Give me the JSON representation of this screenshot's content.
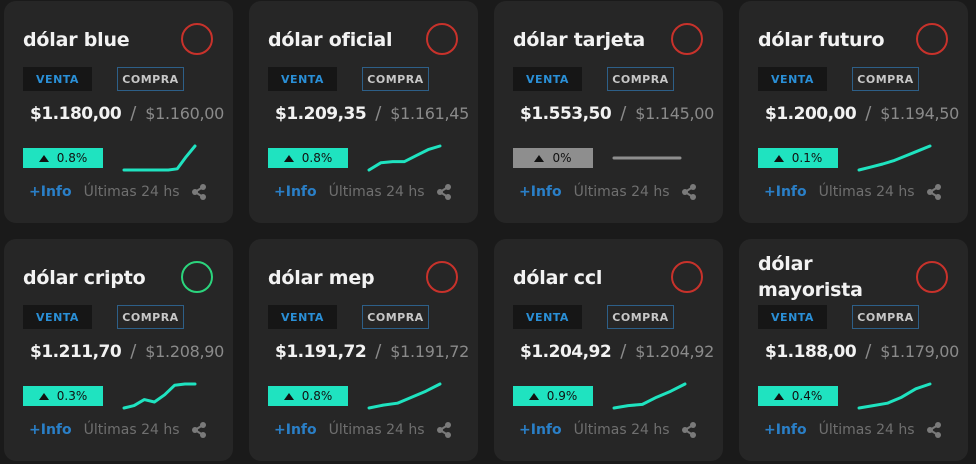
{
  "colors": {
    "background": "#1a1a1a",
    "card": "#262626",
    "accent_up": "#1fe3c0",
    "flat": "#8e8e8e",
    "circle_red": "#c8322b",
    "circle_green": "#2bd57d",
    "link_blue": "#2a7fc7"
  },
  "labels": {
    "venta": "VENTA",
    "compra": "COMPRA",
    "separator": "/",
    "info": "+Info",
    "period": "Últimas 24 hs"
  },
  "icons": {
    "status": "status-circle-icon",
    "change": "triangle-up-icon",
    "share": "share-icon"
  },
  "cards": [
    {
      "title": "dólar blue",
      "venta": "$1.180,00",
      "compra": "$1.160,00",
      "change": "0.8%",
      "trend": "up",
      "status": "red",
      "spark": [
        0,
        0,
        0,
        0,
        0,
        0,
        0.05,
        0.55,
        1
      ]
    },
    {
      "title": "dólar oficial",
      "venta": "$1.209,35",
      "compra": "$1.161,45",
      "change": "0.8%",
      "trend": "up",
      "status": "red",
      "spark": [
        0,
        0.3,
        0.35,
        0.35,
        0.6,
        0.85,
        1
      ]
    },
    {
      "title": "dólar tarjeta",
      "venta": "$1.553,50",
      "compra": "$1.145,00",
      "change": "0%",
      "trend": "flat",
      "status": "red",
      "spark": [
        0.5,
        0.5
      ]
    },
    {
      "title": "dólar futuro",
      "venta": "$1.200,00",
      "compra": "$1.194,50",
      "change": "0.1%",
      "trend": "up",
      "status": "red",
      "spark": [
        0,
        0.12,
        0.25,
        0.4,
        0.6,
        0.8,
        1
      ]
    },
    {
      "title": "dólar cripto",
      "venta": "$1.211,70",
      "compra": "$1.208,90",
      "change": "0.3%",
      "trend": "up",
      "status": "green",
      "spark": [
        0,
        0.1,
        0.35,
        0.25,
        0.55,
        0.95,
        1,
        1
      ]
    },
    {
      "title": "dólar mep",
      "venta": "$1.191,72",
      "compra": "$1.191,72",
      "change": "0.8%",
      "trend": "up",
      "status": "red",
      "spark": [
        0,
        0.12,
        0.2,
        0.45,
        0.7,
        1
      ]
    },
    {
      "title": "dólar ccl",
      "venta": "$1.204,92",
      "compra": "$1.204,92",
      "change": "0.9%",
      "trend": "up",
      "status": "red",
      "spark": [
        0,
        0.1,
        0.15,
        0.45,
        0.7,
        1
      ]
    },
    {
      "title": "dólar mayorista",
      "venta": "$1.188,00",
      "compra": "$1.179,00",
      "change": "0.4%",
      "trend": "up",
      "status": "red",
      "spark": [
        0,
        0.1,
        0.2,
        0.45,
        0.8,
        1
      ]
    }
  ]
}
